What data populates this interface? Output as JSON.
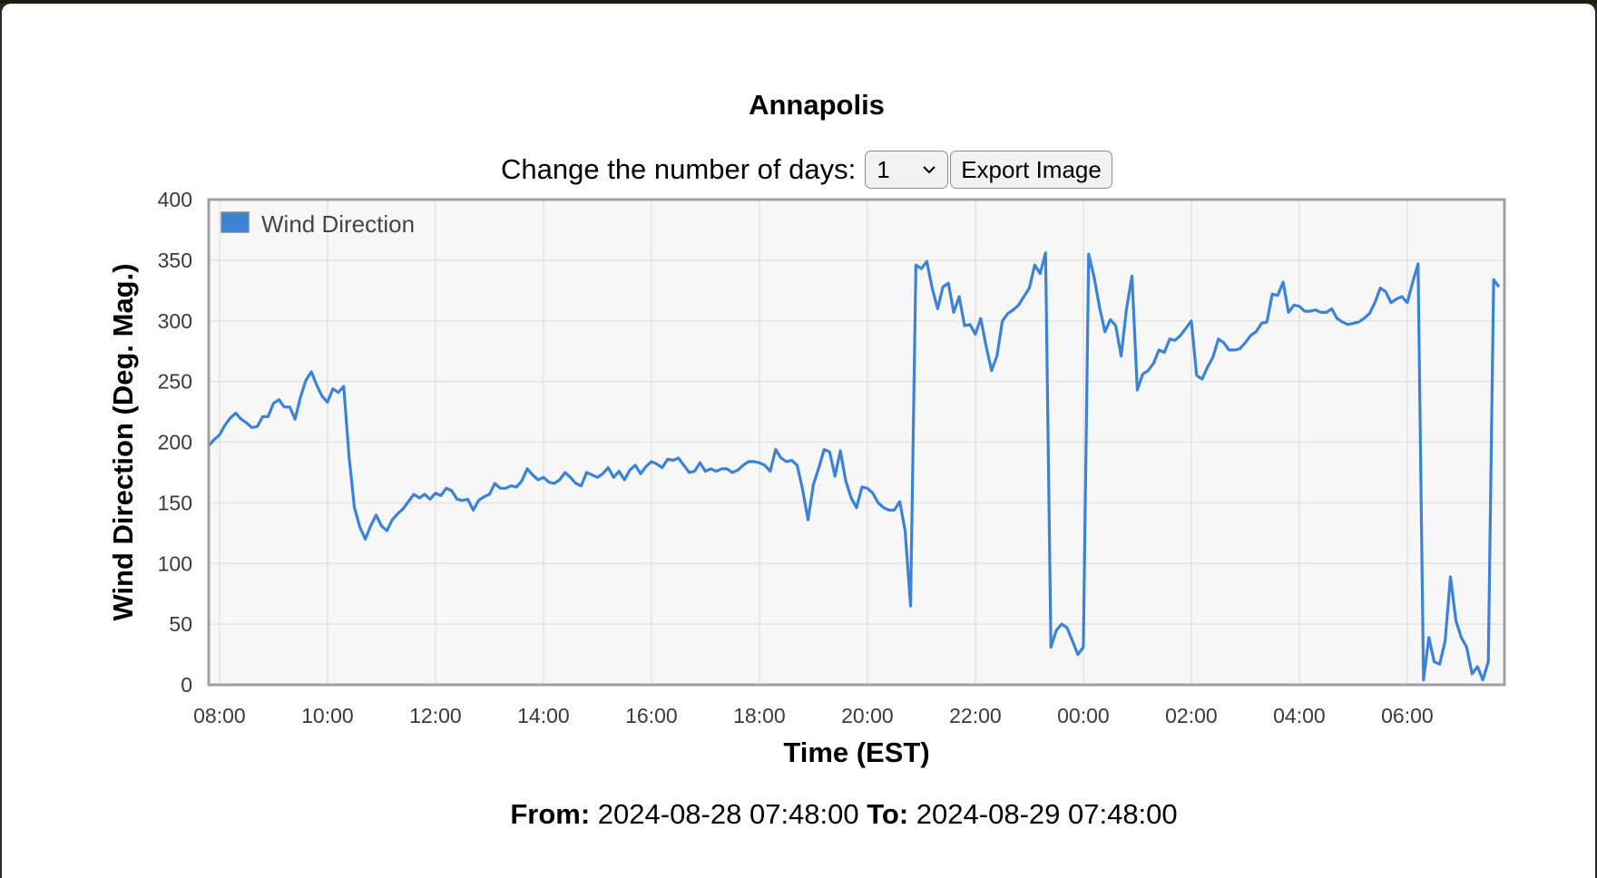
{
  "page": {
    "title": "Annapolis",
    "days_label": "Change the number of days:",
    "days_selected": "1",
    "export_label": "Export Image",
    "from_label": "From:",
    "from_value": "2024-08-28 07:48:00",
    "to_label": "To:",
    "to_value": "2024-08-29 07:48:00"
  },
  "colors": {
    "series": "#3b82d9",
    "plot_bg": "#f7f7f7",
    "plot_border": "#a0a0a0",
    "grid": "#e4e4e4"
  },
  "chart_data": {
    "type": "line",
    "xlabel": "Time (EST)",
    "ylabel": "Wind Direction (Deg. Mag.)",
    "ylim": [
      0,
      400
    ],
    "yticks": [
      0,
      50,
      100,
      150,
      200,
      250,
      300,
      350,
      400
    ],
    "xlim": [
      "2024-08-28 07:48",
      "2024-08-29 07:48"
    ],
    "xticks": [
      {
        "x": "2024-08-28 08:00",
        "label": "08:00"
      },
      {
        "x": "2024-08-28 10:00",
        "label": "10:00"
      },
      {
        "x": "2024-08-28 12:00",
        "label": "12:00"
      },
      {
        "x": "2024-08-28 14:00",
        "label": "14:00"
      },
      {
        "x": "2024-08-28 16:00",
        "label": "16:00"
      },
      {
        "x": "2024-08-28 18:00",
        "label": "18:00"
      },
      {
        "x": "2024-08-28 20:00",
        "label": "20:00"
      },
      {
        "x": "2024-08-28 22:00",
        "label": "22:00"
      },
      {
        "x": "2024-08-29 00:00",
        "label": "00:00"
      },
      {
        "x": "2024-08-29 02:00",
        "label": "02:00"
      },
      {
        "x": "2024-08-29 04:00",
        "label": "04:00"
      },
      {
        "x": "2024-08-29 06:00",
        "label": "06:00"
      }
    ],
    "grid": true,
    "legend": "top-left",
    "series": [
      {
        "name": "Wind Direction",
        "points": [
          [
            "2024-08-28 07:48",
            197
          ],
          [
            "2024-08-28 07:54",
            202
          ],
          [
            "2024-08-28 08:00",
            206
          ],
          [
            "2024-08-28 08:06",
            214
          ],
          [
            "2024-08-28 08:12",
            220
          ],
          [
            "2024-08-28 08:18",
            224
          ],
          [
            "2024-08-28 08:24",
            219
          ],
          [
            "2024-08-28 08:30",
            216
          ],
          [
            "2024-08-28 08:36",
            212
          ],
          [
            "2024-08-28 08:42",
            213
          ],
          [
            "2024-08-28 08:48",
            221
          ],
          [
            "2024-08-28 08:54",
            221
          ],
          [
            "2024-08-28 09:00",
            232
          ],
          [
            "2024-08-28 09:06",
            235
          ],
          [
            "2024-08-28 09:12",
            229
          ],
          [
            "2024-08-28 09:18",
            229
          ],
          [
            "2024-08-28 09:24",
            219
          ],
          [
            "2024-08-28 09:30",
            237
          ],
          [
            "2024-08-28 09:36",
            251
          ],
          [
            "2024-08-28 09:42",
            258
          ],
          [
            "2024-08-28 09:48",
            247
          ],
          [
            "2024-08-28 09:54",
            238
          ],
          [
            "2024-08-28 10:00",
            233
          ],
          [
            "2024-08-28 10:06",
            244
          ],
          [
            "2024-08-28 10:12",
            241
          ],
          [
            "2024-08-28 10:18",
            246
          ],
          [
            "2024-08-28 10:24",
            188
          ],
          [
            "2024-08-28 10:30",
            146
          ],
          [
            "2024-08-28 10:36",
            130
          ],
          [
            "2024-08-28 10:42",
            120
          ],
          [
            "2024-08-28 10:48",
            131
          ],
          [
            "2024-08-28 10:54",
            140
          ],
          [
            "2024-08-28 11:00",
            131
          ],
          [
            "2024-08-28 11:06",
            127
          ],
          [
            "2024-08-28 11:12",
            136
          ],
          [
            "2024-08-28 11:18",
            141
          ],
          [
            "2024-08-28 11:24",
            145
          ],
          [
            "2024-08-28 11:30",
            151
          ],
          [
            "2024-08-28 11:36",
            157
          ],
          [
            "2024-08-28 11:42",
            154
          ],
          [
            "2024-08-28 11:48",
            157
          ],
          [
            "2024-08-28 11:54",
            153
          ],
          [
            "2024-08-28 12:00",
            158
          ],
          [
            "2024-08-28 12:06",
            156
          ],
          [
            "2024-08-28 12:12",
            162
          ],
          [
            "2024-08-28 12:18",
            160
          ],
          [
            "2024-08-28 12:24",
            153
          ],
          [
            "2024-08-28 12:30",
            152
          ],
          [
            "2024-08-28 12:36",
            153
          ],
          [
            "2024-08-28 12:42",
            144
          ],
          [
            "2024-08-28 12:48",
            152
          ],
          [
            "2024-08-28 12:54",
            155
          ],
          [
            "2024-08-28 13:00",
            157
          ],
          [
            "2024-08-28 13:06",
            166
          ],
          [
            "2024-08-28 13:12",
            162
          ],
          [
            "2024-08-28 13:18",
            162
          ],
          [
            "2024-08-28 13:24",
            164
          ],
          [
            "2024-08-28 13:30",
            163
          ],
          [
            "2024-08-28 13:36",
            168
          ],
          [
            "2024-08-28 13:42",
            178
          ],
          [
            "2024-08-28 13:48",
            173
          ],
          [
            "2024-08-28 13:54",
            169
          ],
          [
            "2024-08-28 14:00",
            171
          ],
          [
            "2024-08-28 14:06",
            167
          ],
          [
            "2024-08-28 14:12",
            166
          ],
          [
            "2024-08-28 14:18",
            169
          ],
          [
            "2024-08-28 14:24",
            175
          ],
          [
            "2024-08-28 14:30",
            171
          ],
          [
            "2024-08-28 14:36",
            166
          ],
          [
            "2024-08-28 14:42",
            164
          ],
          [
            "2024-08-28 14:48",
            175
          ],
          [
            "2024-08-28 14:54",
            173
          ],
          [
            "2024-08-28 15:00",
            171
          ],
          [
            "2024-08-28 15:06",
            174
          ],
          [
            "2024-08-28 15:12",
            179
          ],
          [
            "2024-08-28 15:18",
            171
          ],
          [
            "2024-08-28 15:24",
            176
          ],
          [
            "2024-08-28 15:30",
            169
          ],
          [
            "2024-08-28 15:36",
            177
          ],
          [
            "2024-08-28 15:42",
            181
          ],
          [
            "2024-08-28 15:48",
            174
          ],
          [
            "2024-08-28 15:54",
            180
          ],
          [
            "2024-08-28 16:00",
            184
          ],
          [
            "2024-08-28 16:06",
            182
          ],
          [
            "2024-08-28 16:12",
            179
          ],
          [
            "2024-08-28 16:18",
            186
          ],
          [
            "2024-08-28 16:24",
            185
          ],
          [
            "2024-08-28 16:30",
            187
          ],
          [
            "2024-08-28 16:36",
            181
          ],
          [
            "2024-08-28 16:42",
            175
          ],
          [
            "2024-08-28 16:48",
            176
          ],
          [
            "2024-08-28 16:54",
            183
          ],
          [
            "2024-08-28 17:00",
            176
          ],
          [
            "2024-08-28 17:06",
            178
          ],
          [
            "2024-08-28 17:12",
            176
          ],
          [
            "2024-08-28 17:18",
            178
          ],
          [
            "2024-08-28 17:24",
            178
          ],
          [
            "2024-08-28 17:30",
            175
          ],
          [
            "2024-08-28 17:36",
            177
          ],
          [
            "2024-08-28 17:42",
            181
          ],
          [
            "2024-08-28 17:48",
            184
          ],
          [
            "2024-08-28 17:54",
            184
          ],
          [
            "2024-08-28 18:00",
            183
          ],
          [
            "2024-08-28 18:06",
            181
          ],
          [
            "2024-08-28 18:12",
            176
          ],
          [
            "2024-08-28 18:18",
            194
          ],
          [
            "2024-08-28 18:24",
            187
          ],
          [
            "2024-08-28 18:30",
            184
          ],
          [
            "2024-08-28 18:36",
            185
          ],
          [
            "2024-08-28 18:42",
            181
          ],
          [
            "2024-08-28 18:48",
            161
          ],
          [
            "2024-08-28 18:54",
            136
          ],
          [
            "2024-08-28 19:00",
            165
          ],
          [
            "2024-08-28 19:06",
            179
          ],
          [
            "2024-08-28 19:12",
            194
          ],
          [
            "2024-08-28 19:18",
            192
          ],
          [
            "2024-08-28 19:24",
            172
          ],
          [
            "2024-08-28 19:30",
            193
          ],
          [
            "2024-08-28 19:36",
            168
          ],
          [
            "2024-08-28 19:42",
            154
          ],
          [
            "2024-08-28 19:48",
            146
          ],
          [
            "2024-08-28 19:54",
            163
          ],
          [
            "2024-08-28 20:00",
            162
          ],
          [
            "2024-08-28 20:06",
            158
          ],
          [
            "2024-08-28 20:12",
            150
          ],
          [
            "2024-08-28 20:18",
            146
          ],
          [
            "2024-08-28 20:24",
            144
          ],
          [
            "2024-08-28 20:30",
            144
          ],
          [
            "2024-08-28 20:36",
            151
          ],
          [
            "2024-08-28 20:42",
            127
          ],
          [
            "2024-08-28 20:48",
            65
          ],
          [
            "2024-08-28 20:54",
            346
          ],
          [
            "2024-08-28 21:00",
            343
          ],
          [
            "2024-08-28 21:06",
            349
          ],
          [
            "2024-08-28 21:12",
            327
          ],
          [
            "2024-08-28 21:18",
            310
          ],
          [
            "2024-08-28 21:24",
            328
          ],
          [
            "2024-08-28 21:30",
            331
          ],
          [
            "2024-08-28 21:36",
            307
          ],
          [
            "2024-08-28 21:42",
            320
          ],
          [
            "2024-08-28 21:48",
            296
          ],
          [
            "2024-08-28 21:54",
            297
          ],
          [
            "2024-08-28 22:00",
            289
          ],
          [
            "2024-08-28 22:06",
            302
          ],
          [
            "2024-08-28 22:12",
            279
          ],
          [
            "2024-08-28 22:18",
            259
          ],
          [
            "2024-08-28 22:24",
            271
          ],
          [
            "2024-08-28 22:30",
            300
          ],
          [
            "2024-08-28 22:36",
            306
          ],
          [
            "2024-08-28 22:42",
            309
          ],
          [
            "2024-08-28 22:48",
            313
          ],
          [
            "2024-08-28 22:54",
            320
          ],
          [
            "2024-08-28 23:00",
            327
          ],
          [
            "2024-08-28 23:06",
            346
          ],
          [
            "2024-08-28 23:12",
            339
          ],
          [
            "2024-08-28 23:18",
            356
          ],
          [
            "2024-08-28 23:24",
            31
          ],
          [
            "2024-08-28 23:30",
            45
          ],
          [
            "2024-08-28 23:36",
            50
          ],
          [
            "2024-08-28 23:42",
            47
          ],
          [
            "2024-08-28 23:48",
            36
          ],
          [
            "2024-08-28 23:54",
            25
          ],
          [
            "2024-08-29 00:00",
            31
          ],
          [
            "2024-08-29 00:06",
            355
          ],
          [
            "2024-08-29 00:12",
            336
          ],
          [
            "2024-08-29 00:18",
            311
          ],
          [
            "2024-08-29 00:24",
            291
          ],
          [
            "2024-08-29 00:30",
            301
          ],
          [
            "2024-08-29 00:36",
            296
          ],
          [
            "2024-08-29 00:42",
            271
          ],
          [
            "2024-08-29 00:48",
            310
          ],
          [
            "2024-08-29 00:54",
            337
          ],
          [
            "2024-08-29 01:00",
            243
          ],
          [
            "2024-08-29 01:06",
            256
          ],
          [
            "2024-08-29 01:12",
            259
          ],
          [
            "2024-08-29 01:18",
            265
          ],
          [
            "2024-08-29 01:24",
            276
          ],
          [
            "2024-08-29 01:30",
            274
          ],
          [
            "2024-08-29 01:36",
            285
          ],
          [
            "2024-08-29 01:42",
            284
          ],
          [
            "2024-08-29 01:48",
            288
          ],
          [
            "2024-08-29 01:54",
            294
          ],
          [
            "2024-08-29 02:00",
            300
          ],
          [
            "2024-08-29 02:06",
            255
          ],
          [
            "2024-08-29 02:12",
            252
          ],
          [
            "2024-08-29 02:18",
            262
          ],
          [
            "2024-08-29 02:24",
            270
          ],
          [
            "2024-08-29 02:30",
            285
          ],
          [
            "2024-08-29 02:36",
            282
          ],
          [
            "2024-08-29 02:42",
            276
          ],
          [
            "2024-08-29 02:48",
            276
          ],
          [
            "2024-08-29 02:54",
            277
          ],
          [
            "2024-08-29 03:00",
            282
          ],
          [
            "2024-08-29 03:06",
            288
          ],
          [
            "2024-08-29 03:12",
            291
          ],
          [
            "2024-08-29 03:18",
            298
          ],
          [
            "2024-08-29 03:24",
            299
          ],
          [
            "2024-08-29 03:30",
            322
          ],
          [
            "2024-08-29 03:36",
            321
          ],
          [
            "2024-08-29 03:42",
            332
          ],
          [
            "2024-08-29 03:48",
            307
          ],
          [
            "2024-08-29 03:54",
            313
          ],
          [
            "2024-08-29 04:00",
            312
          ],
          [
            "2024-08-29 04:06",
            308
          ],
          [
            "2024-08-29 04:12",
            308
          ],
          [
            "2024-08-29 04:18",
            309
          ],
          [
            "2024-08-29 04:24",
            307
          ],
          [
            "2024-08-29 04:30",
            307
          ],
          [
            "2024-08-29 04:36",
            310
          ],
          [
            "2024-08-29 04:42",
            302
          ],
          [
            "2024-08-29 04:48",
            299
          ],
          [
            "2024-08-29 04:54",
            297
          ],
          [
            "2024-08-29 05:00",
            298
          ],
          [
            "2024-08-29 05:06",
            299
          ],
          [
            "2024-08-29 05:12",
            302
          ],
          [
            "2024-08-29 05:18",
            306
          ],
          [
            "2024-08-29 05:24",
            315
          ],
          [
            "2024-08-29 05:30",
            327
          ],
          [
            "2024-08-29 05:36",
            324
          ],
          [
            "2024-08-29 05:42",
            315
          ],
          [
            "2024-08-29 05:48",
            318
          ],
          [
            "2024-08-29 05:54",
            320
          ],
          [
            "2024-08-29 06:00",
            315
          ],
          [
            "2024-08-29 06:06",
            332
          ],
          [
            "2024-08-29 06:12",
            347
          ],
          [
            "2024-08-29 06:18",
            4
          ],
          [
            "2024-08-29 06:24",
            39
          ],
          [
            "2024-08-29 06:30",
            19
          ],
          [
            "2024-08-29 06:36",
            17
          ],
          [
            "2024-08-29 06:42",
            36
          ],
          [
            "2024-08-29 06:48",
            89
          ],
          [
            "2024-08-29 06:54",
            53
          ],
          [
            "2024-08-29 07:00",
            39
          ],
          [
            "2024-08-29 07:06",
            31
          ],
          [
            "2024-08-29 07:12",
            9
          ],
          [
            "2024-08-29 07:18",
            15
          ],
          [
            "2024-08-29 07:24",
            4
          ],
          [
            "2024-08-29 07:30",
            19
          ],
          [
            "2024-08-29 07:36",
            334
          ],
          [
            "2024-08-29 07:42",
            328
          ]
        ]
      }
    ]
  }
}
